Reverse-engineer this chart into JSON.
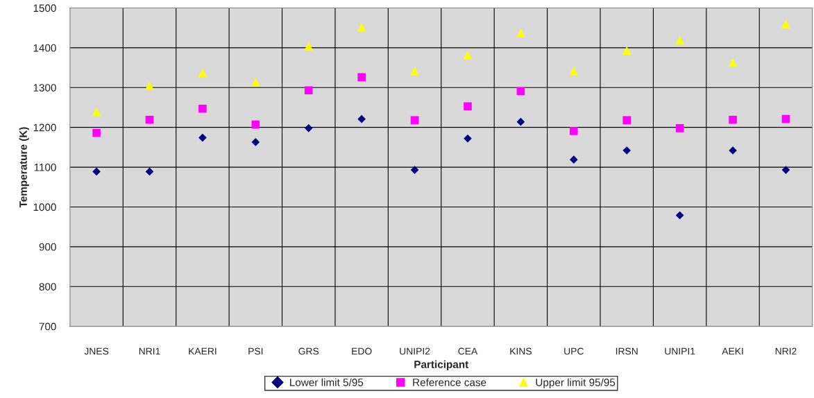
{
  "chart_data": {
    "type": "scatter",
    "xlabel": "Participant",
    "ylabel": "Temperature (K)",
    "categories": [
      "JNES",
      "NRI1",
      "KAERI",
      "PSI",
      "GRS",
      "EDO",
      "UNIPI2",
      "CEA",
      "KINS",
      "UPC",
      "IRSN",
      "UNIPI1",
      "AEKI",
      "NRI2"
    ],
    "series": [
      {
        "name": "Lower limit 5/95",
        "color": "#000080",
        "marker": "diamond",
        "values": [
          1089,
          1089,
          1174,
          1163,
          1198,
          1221,
          1093,
          1172,
          1214,
          1119,
          1142,
          979,
          1142,
          1093
        ]
      },
      {
        "name": "Reference case",
        "color": "#ff00ff",
        "marker": "square",
        "values": [
          1186,
          1219,
          1247,
          1207,
          1293,
          1326,
          1218,
          1253,
          1291,
          1191,
          1218,
          1198,
          1219,
          1221
        ]
      },
      {
        "name": "Upper limit 95/95",
        "color": "#ffff00",
        "marker": "triangle",
        "values": [
          1239,
          1305,
          1337,
          1314,
          1404,
          1451,
          1342,
          1382,
          1437,
          1342,
          1393,
          1419,
          1363,
          1460
        ]
      }
    ],
    "ylim": [
      700,
      1500
    ],
    "yticks": [
      700,
      800,
      900,
      1000,
      1100,
      1200,
      1300,
      1400,
      1500
    ],
    "grid": true,
    "legend": "bottom"
  }
}
